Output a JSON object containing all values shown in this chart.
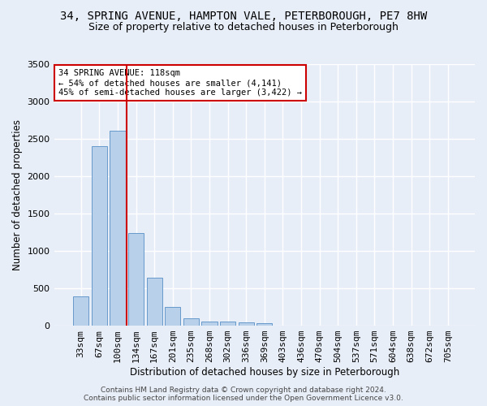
{
  "title_line1": "34, SPRING AVENUE, HAMPTON VALE, PETERBOROUGH, PE7 8HW",
  "title_line2": "Size of property relative to detached houses in Peterborough",
  "xlabel": "Distribution of detached houses by size in Peterborough",
  "ylabel": "Number of detached properties",
  "footer_line1": "Contains HM Land Registry data © Crown copyright and database right 2024.",
  "footer_line2": "Contains public sector information licensed under the Open Government Licence v3.0.",
  "categories": [
    "33sqm",
    "67sqm",
    "100sqm",
    "134sqm",
    "167sqm",
    "201sqm",
    "235sqm",
    "268sqm",
    "302sqm",
    "336sqm",
    "369sqm",
    "403sqm",
    "436sqm",
    "470sqm",
    "504sqm",
    "537sqm",
    "571sqm",
    "604sqm",
    "638sqm",
    "672sqm",
    "705sqm"
  ],
  "values": [
    390,
    2400,
    2610,
    1240,
    640,
    255,
    95,
    60,
    58,
    45,
    30,
    0,
    0,
    0,
    0,
    0,
    0,
    0,
    0,
    0,
    0
  ],
  "bar_color": "#b8d0ea",
  "bar_edge_color": "#6699cc",
  "vline_x_index": 2.5,
  "vline_color": "#cc0000",
  "annotation_text": "34 SPRING AVENUE: 118sqm\n← 54% of detached houses are smaller (4,141)\n45% of semi-detached houses are larger (3,422) →",
  "annotation_box_color": "white",
  "annotation_box_edge": "#cc0000",
  "ylim": [
    0,
    3500
  ],
  "yticks": [
    0,
    500,
    1000,
    1500,
    2000,
    2500,
    3000,
    3500
  ],
  "background_color": "#e8eef8",
  "grid_color": "white",
  "title_fontsize": 10,
  "subtitle_fontsize": 9,
  "axis_label_fontsize": 8.5,
  "tick_fontsize": 8,
  "annotation_fontsize": 7.5,
  "footer_fontsize": 6.5
}
